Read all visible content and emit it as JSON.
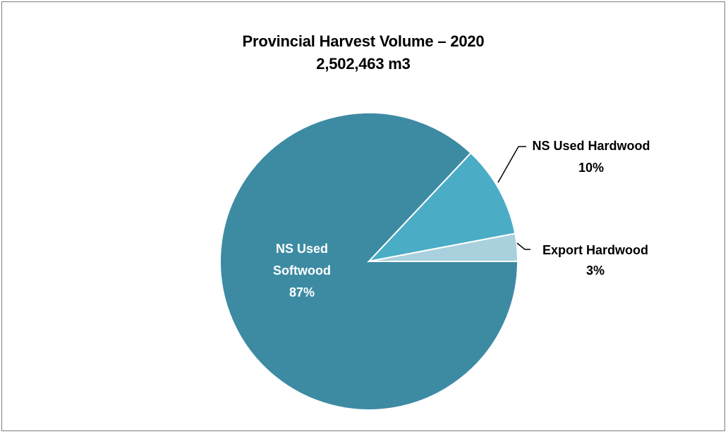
{
  "chart_data": {
    "type": "pie",
    "title": "Provincial Harvest Volume – 2020",
    "subtitle": "2,502,463 m3",
    "slices": [
      {
        "label": "NS Used Softwood",
        "label_lines": [
          "NS Used",
          "Softwood"
        ],
        "value": 87,
        "display": "87%",
        "color": "#3d8ba3",
        "label_position": "inside"
      },
      {
        "label": "NS Used Hardwood",
        "label_lines": [
          "NS Used Hardwood"
        ],
        "value": 10,
        "display": "10%",
        "color": "#4aacc5",
        "label_position": "callout"
      },
      {
        "label": "Export Hardwood",
        "label_lines": [
          "Export Hardwood"
        ],
        "value": 3,
        "display": "3%",
        "color": "#a9d0dd",
        "label_position": "callout"
      }
    ],
    "start_angle": "3 o'clock",
    "direction": "counterclockwise",
    "slice_border_color": "#ffffff",
    "legend": "none"
  }
}
